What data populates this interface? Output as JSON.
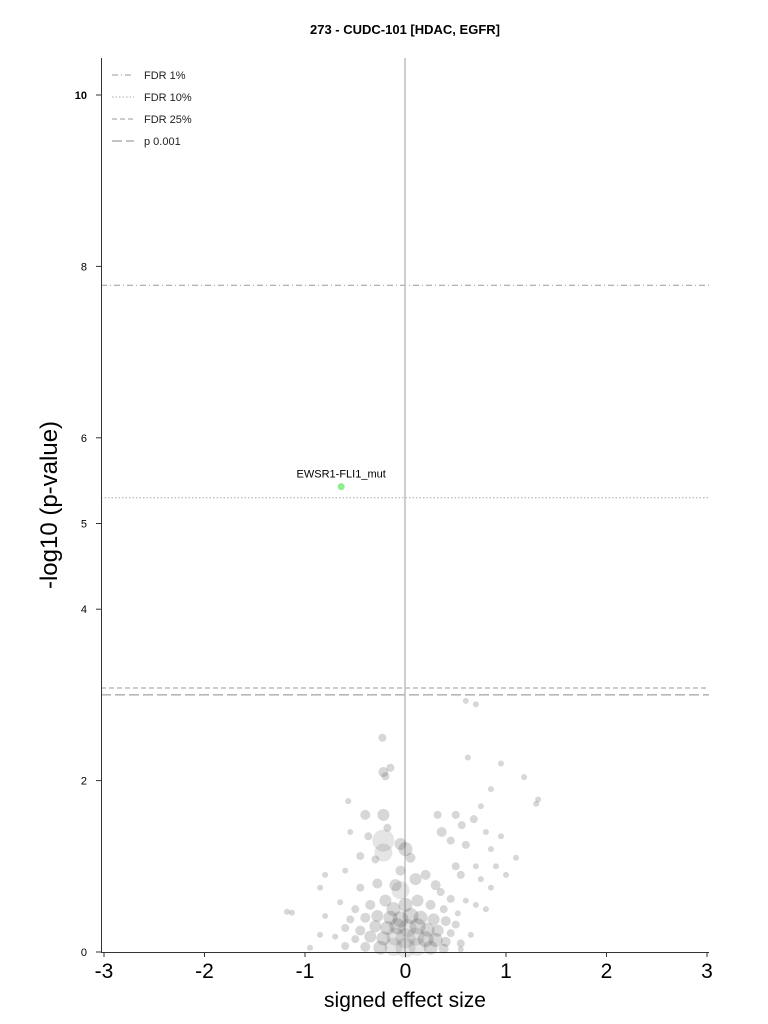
{
  "chart_data": {
    "type": "scatter",
    "title": "273 - CUDC-101 [HDAC, EGFR]",
    "xlabel": "signed effect size",
    "ylabel": "-log10 (p-value)",
    "xlim": [
      -3,
      3
    ],
    "ylim": [
      0,
      10.5
    ],
    "xticks": [
      "-3",
      "-2",
      "-1",
      "0",
      "1",
      "2",
      "3"
    ],
    "yticks": [
      "0",
      "2",
      "4",
      "5",
      "6",
      "8",
      "10"
    ],
    "grid": false,
    "legend_position": "top-left",
    "thresholds": [
      {
        "name": "FDR 1%",
        "y": 7.78,
        "style": "dashdot"
      },
      {
        "name": "FDR 10%",
        "y": 5.3,
        "style": "dotted"
      },
      {
        "name": "FDR 25%",
        "y": 3.08,
        "style": "dashed"
      },
      {
        "name": "p 0.001",
        "y": 3.0,
        "style": "longdash"
      }
    ],
    "highlight": {
      "label": "EWSR1-FLI1_mut",
      "x": -0.64,
      "y": 5.43,
      "color": "#90ee90"
    },
    "points": [
      {
        "x": 0.6,
        "y": 2.93,
        "s": 3
      },
      {
        "x": 0.7,
        "y": 2.89,
        "s": 3
      },
      {
        "x": -0.23,
        "y": 2.5,
        "s": 4
      },
      {
        "x": -0.22,
        "y": 2.1,
        "s": 5
      },
      {
        "x": -0.15,
        "y": 2.15,
        "s": 4
      },
      {
        "x": -0.2,
        "y": 2.05,
        "s": 4
      },
      {
        "x": 0.62,
        "y": 2.27,
        "s": 3
      },
      {
        "x": 0.95,
        "y": 2.2,
        "s": 3
      },
      {
        "x": 1.18,
        "y": 2.04,
        "s": 3
      },
      {
        "x": 1.32,
        "y": 1.78,
        "s": 3
      },
      {
        "x": 1.3,
        "y": 1.73,
        "s": 3
      },
      {
        "x": 0.85,
        "y": 1.9,
        "s": 3
      },
      {
        "x": -0.57,
        "y": 1.76,
        "s": 3
      },
      {
        "x": -0.4,
        "y": 1.6,
        "s": 5
      },
      {
        "x": -0.22,
        "y": 1.6,
        "s": 6
      },
      {
        "x": -0.22,
        "y": 1.3,
        "s": 11
      },
      {
        "x": -0.22,
        "y": 1.16,
        "s": 9
      },
      {
        "x": -0.18,
        "y": 1.45,
        "s": 4
      },
      {
        "x": -0.05,
        "y": 1.26,
        "s": 6
      },
      {
        "x": 0.0,
        "y": 1.2,
        "s": 7
      },
      {
        "x": 0.05,
        "y": 1.1,
        "s": 5
      },
      {
        "x": 0.32,
        "y": 1.6,
        "s": 4
      },
      {
        "x": 0.36,
        "y": 1.4,
        "s": 5
      },
      {
        "x": 0.45,
        "y": 1.3,
        "s": 4
      },
      {
        "x": 0.5,
        "y": 1.6,
        "s": 4
      },
      {
        "x": 0.56,
        "y": 1.48,
        "s": 4
      },
      {
        "x": 0.6,
        "y": 1.25,
        "s": 4
      },
      {
        "x": 0.68,
        "y": 1.55,
        "s": 4
      },
      {
        "x": 0.75,
        "y": 1.7,
        "s": 3
      },
      {
        "x": 0.8,
        "y": 1.4,
        "s": 3
      },
      {
        "x": 0.85,
        "y": 1.2,
        "s": 3
      },
      {
        "x": 0.95,
        "y": 1.35,
        "s": 3
      },
      {
        "x": 1.1,
        "y": 1.1,
        "s": 3
      },
      {
        "x": 0.9,
        "y": 1.0,
        "s": 3
      },
      {
        "x": 0.7,
        "y": 1.0,
        "s": 3
      },
      {
        "x": 0.5,
        "y": 1.0,
        "s": 4
      },
      {
        "x": 0.55,
        "y": 0.9,
        "s": 4
      },
      {
        "x": 0.75,
        "y": 0.85,
        "s": 3
      },
      {
        "x": 0.85,
        "y": 0.75,
        "s": 3
      },
      {
        "x": -0.37,
        "y": 1.35,
        "s": 4
      },
      {
        "x": -0.55,
        "y": 1.4,
        "s": 3
      },
      {
        "x": -0.45,
        "y": 1.12,
        "s": 4
      },
      {
        "x": -0.3,
        "y": 1.08,
        "s": 4
      },
      {
        "x": -0.05,
        "y": 0.95,
        "s": 5
      },
      {
        "x": -0.6,
        "y": 0.95,
        "s": 3
      },
      {
        "x": -0.8,
        "y": 0.9,
        "s": 3
      },
      {
        "x": -0.85,
        "y": 0.75,
        "s": 3
      },
      {
        "x": -0.45,
        "y": 0.75,
        "s": 4
      },
      {
        "x": -0.28,
        "y": 0.8,
        "s": 5
      },
      {
        "x": -0.1,
        "y": 0.78,
        "s": 6
      },
      {
        "x": -0.05,
        "y": 0.72,
        "s": 9
      },
      {
        "x": 0.1,
        "y": 0.85,
        "s": 6
      },
      {
        "x": 0.2,
        "y": 0.9,
        "s": 5
      },
      {
        "x": 0.3,
        "y": 0.78,
        "s": 5
      },
      {
        "x": 0.35,
        "y": 0.7,
        "s": 4
      },
      {
        "x": 0.45,
        "y": 0.62,
        "s": 4
      },
      {
        "x": 0.6,
        "y": 0.6,
        "s": 3
      },
      {
        "x": 0.7,
        "y": 0.55,
        "s": 3
      },
      {
        "x": -0.65,
        "y": 0.58,
        "s": 3
      },
      {
        "x": -0.5,
        "y": 0.5,
        "s": 4
      },
      {
        "x": -0.35,
        "y": 0.55,
        "s": 5
      },
      {
        "x": -0.2,
        "y": 0.6,
        "s": 6
      },
      {
        "x": -0.12,
        "y": 0.5,
        "s": 7
      },
      {
        "x": 0.0,
        "y": 0.55,
        "s": 7
      },
      {
        "x": 0.12,
        "y": 0.6,
        "s": 6
      },
      {
        "x": 0.25,
        "y": 0.55,
        "s": 5
      },
      {
        "x": 0.38,
        "y": 0.5,
        "s": 4
      },
      {
        "x": 0.52,
        "y": 0.45,
        "s": 3
      },
      {
        "x": -1.18,
        "y": 0.47,
        "s": 3
      },
      {
        "x": -1.13,
        "y": 0.46,
        "s": 3
      },
      {
        "x": -0.8,
        "y": 0.42,
        "s": 3
      },
      {
        "x": -0.55,
        "y": 0.38,
        "s": 4
      },
      {
        "x": -0.4,
        "y": 0.4,
        "s": 5
      },
      {
        "x": -0.28,
        "y": 0.42,
        "s": 6
      },
      {
        "x": -0.15,
        "y": 0.4,
        "s": 7
      },
      {
        "x": -0.05,
        "y": 0.38,
        "s": 8
      },
      {
        "x": 0.05,
        "y": 0.42,
        "s": 8
      },
      {
        "x": 0.15,
        "y": 0.4,
        "s": 7
      },
      {
        "x": 0.28,
        "y": 0.38,
        "s": 6
      },
      {
        "x": 0.4,
        "y": 0.36,
        "s": 5
      },
      {
        "x": 0.5,
        "y": 0.32,
        "s": 4
      },
      {
        "x": -0.6,
        "y": 0.28,
        "s": 4
      },
      {
        "x": -0.45,
        "y": 0.25,
        "s": 5
      },
      {
        "x": -0.3,
        "y": 0.3,
        "s": 6
      },
      {
        "x": -0.18,
        "y": 0.28,
        "s": 7
      },
      {
        "x": -0.08,
        "y": 0.3,
        "s": 8
      },
      {
        "x": 0.02,
        "y": 0.28,
        "s": 9
      },
      {
        "x": 0.12,
        "y": 0.3,
        "s": 8
      },
      {
        "x": 0.22,
        "y": 0.26,
        "s": 7
      },
      {
        "x": 0.32,
        "y": 0.25,
        "s": 6
      },
      {
        "x": 0.45,
        "y": 0.22,
        "s": 4
      },
      {
        "x": -0.85,
        "y": 0.2,
        "s": 3
      },
      {
        "x": -0.7,
        "y": 0.18,
        "s": 3
      },
      {
        "x": -0.5,
        "y": 0.15,
        "s": 4
      },
      {
        "x": -0.35,
        "y": 0.18,
        "s": 6
      },
      {
        "x": -0.22,
        "y": 0.16,
        "s": 7
      },
      {
        "x": -0.1,
        "y": 0.18,
        "s": 9
      },
      {
        "x": 0.0,
        "y": 0.16,
        "s": 10
      },
      {
        "x": 0.1,
        "y": 0.18,
        "s": 9
      },
      {
        "x": 0.2,
        "y": 0.15,
        "s": 8
      },
      {
        "x": 0.3,
        "y": 0.14,
        "s": 7
      },
      {
        "x": 0.4,
        "y": 0.12,
        "s": 5
      },
      {
        "x": 0.55,
        "y": 0.1,
        "s": 4
      },
      {
        "x": -0.6,
        "y": 0.07,
        "s": 4
      },
      {
        "x": -0.4,
        "y": 0.06,
        "s": 5
      },
      {
        "x": -0.25,
        "y": 0.05,
        "s": 7
      },
      {
        "x": -0.12,
        "y": 0.06,
        "s": 9
      },
      {
        "x": 0.0,
        "y": 0.05,
        "s": 10
      },
      {
        "x": 0.12,
        "y": 0.06,
        "s": 9
      },
      {
        "x": 0.25,
        "y": 0.05,
        "s": 7
      },
      {
        "x": 0.38,
        "y": 0.04,
        "s": 5
      },
      {
        "x": -0.95,
        "y": 0.05,
        "s": 3
      },
      {
        "x": 0.55,
        "y": 0.03,
        "s": 3
      },
      {
        "x": 0.65,
        "y": 0.2,
        "s": 3
      },
      {
        "x": 0.8,
        "y": 0.5,
        "s": 3
      },
      {
        "x": 1.0,
        "y": 0.9,
        "s": 3
      }
    ]
  }
}
